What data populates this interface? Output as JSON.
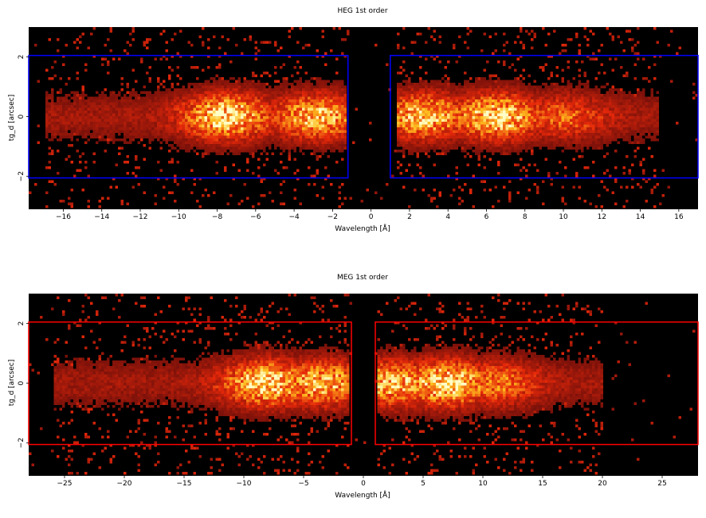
{
  "chart_data": [
    {
      "type": "heatmap",
      "title": "HEG 1st order",
      "xlabel": "Wavelength [Å]",
      "ylabel": "tg_d [arcsec]",
      "xlim": [
        -17.8,
        17.0
      ],
      "ylim": [
        -3.1,
        3.0
      ],
      "xticks": [
        -16,
        -14,
        -12,
        -10,
        -8,
        -6,
        -4,
        -2,
        0,
        2,
        4,
        6,
        8,
        10,
        12,
        14,
        16
      ],
      "xtick_labels": [
        "−16",
        "−14",
        "−12",
        "−10",
        "−8",
        "−6",
        "−4",
        "−2",
        "0",
        "2",
        "4",
        "6",
        "8",
        "10",
        "12",
        "14",
        "16"
      ],
      "yticks": [
        -2,
        0,
        2
      ],
      "ytick_labels": [
        "−2",
        "0",
        "2"
      ],
      "colormap": "heat",
      "background": "#000000",
      "regions": [
        {
          "x": [
            -17.8,
            -1.2
          ],
          "y": [
            -2.05,
            2.05
          ],
          "color": "#0000ff"
        },
        {
          "x": [
            1.0,
            17.0
          ],
          "y": [
            -2.05,
            2.05
          ],
          "color": "#0000ff"
        }
      ],
      "intensity_peaks": [
        {
          "x": -7.5,
          "strength": 1.0
        },
        {
          "x": -2.8,
          "strength": 0.85
        },
        {
          "x": 2.8,
          "strength": 0.9
        },
        {
          "x": 6.5,
          "strength": 1.0
        },
        {
          "x": 10.0,
          "strength": 0.5
        }
      ],
      "emission_range": [
        [
          -17.0,
          -1.3
        ],
        [
          1.3,
          15.0
        ]
      ]
    },
    {
      "type": "heatmap",
      "title": "MEG 1st order",
      "xlabel": "Wavelength [Å]",
      "ylabel": "tg_d [arcsec]",
      "xlim": [
        -28.0,
        28.0
      ],
      "ylim": [
        -3.1,
        3.0
      ],
      "xticks": [
        -25,
        -20,
        -15,
        -10,
        -5,
        0,
        5,
        10,
        15,
        20,
        25
      ],
      "xtick_labels": [
        "−25",
        "−20",
        "−15",
        "−10",
        "−5",
        "0",
        "5",
        "10",
        "15",
        "20",
        "25"
      ],
      "yticks": [
        -2,
        0,
        2
      ],
      "ytick_labels": [
        "−2",
        "0",
        "2"
      ],
      "colormap": "heat",
      "background": "#000000",
      "regions": [
        {
          "x": [
            -28.0,
            -1.0
          ],
          "y": [
            -2.05,
            2.05
          ],
          "color": "#ff0000"
        },
        {
          "x": [
            1.0,
            28.0
          ],
          "y": [
            -2.05,
            2.05
          ],
          "color": "#ff0000"
        }
      ],
      "intensity_peaks": [
        {
          "x": -8.0,
          "strength": 1.0
        },
        {
          "x": -3.5,
          "strength": 0.85
        },
        {
          "x": 2.5,
          "strength": 0.85
        },
        {
          "x": 7.0,
          "strength": 1.0
        },
        {
          "x": 11.0,
          "strength": 0.6
        }
      ],
      "emission_range": [
        [
          -26.0,
          -1.2
        ],
        [
          1.2,
          20.0
        ]
      ]
    }
  ]
}
